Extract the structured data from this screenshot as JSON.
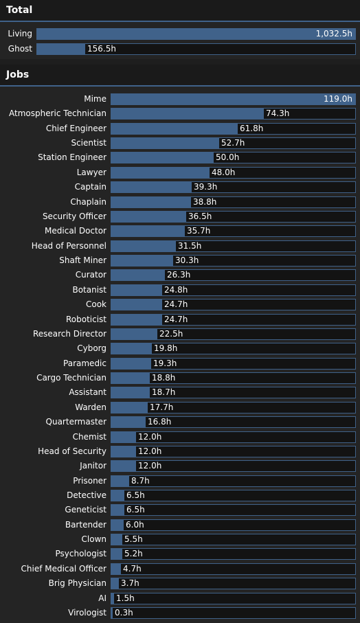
{
  "total": {
    "title": "Total",
    "rows": [
      {
        "label": "Living",
        "value": "1,032.5h",
        "hours": 1032.5
      },
      {
        "label": "Ghost",
        "value": "156.5h",
        "hours": 156.5
      }
    ]
  },
  "jobs": {
    "title": "Jobs",
    "rows": [
      {
        "label": "Mime",
        "value": "119.0h",
        "hours": 119.0
      },
      {
        "label": "Atmospheric Technician",
        "value": "74.3h",
        "hours": 74.3
      },
      {
        "label": "Chief Engineer",
        "value": "61.8h",
        "hours": 61.8
      },
      {
        "label": "Scientist",
        "value": "52.7h",
        "hours": 52.7
      },
      {
        "label": "Station Engineer",
        "value": "50.0h",
        "hours": 50.0
      },
      {
        "label": "Lawyer",
        "value": "48.0h",
        "hours": 48.0
      },
      {
        "label": "Captain",
        "value": "39.3h",
        "hours": 39.3
      },
      {
        "label": "Chaplain",
        "value": "38.8h",
        "hours": 38.8
      },
      {
        "label": "Security Officer",
        "value": "36.5h",
        "hours": 36.5
      },
      {
        "label": "Medical Doctor",
        "value": "35.7h",
        "hours": 35.7
      },
      {
        "label": "Head of Personnel",
        "value": "31.5h",
        "hours": 31.5
      },
      {
        "label": "Shaft Miner",
        "value": "30.3h",
        "hours": 30.3
      },
      {
        "label": "Curator",
        "value": "26.3h",
        "hours": 26.3
      },
      {
        "label": "Botanist",
        "value": "24.8h",
        "hours": 24.8
      },
      {
        "label": "Cook",
        "value": "24.7h",
        "hours": 24.7
      },
      {
        "label": "Roboticist",
        "value": "24.7h",
        "hours": 24.7
      },
      {
        "label": "Research Director",
        "value": "22.5h",
        "hours": 22.5
      },
      {
        "label": "Cyborg",
        "value": "19.8h",
        "hours": 19.8
      },
      {
        "label": "Paramedic",
        "value": "19.3h",
        "hours": 19.3
      },
      {
        "label": "Cargo Technician",
        "value": "18.8h",
        "hours": 18.8
      },
      {
        "label": "Assistant",
        "value": "18.7h",
        "hours": 18.7
      },
      {
        "label": "Warden",
        "value": "17.7h",
        "hours": 17.7
      },
      {
        "label": "Quartermaster",
        "value": "16.8h",
        "hours": 16.8
      },
      {
        "label": "Chemist",
        "value": "12.0h",
        "hours": 12.0
      },
      {
        "label": "Head of Security",
        "value": "12.0h",
        "hours": 12.0
      },
      {
        "label": "Janitor",
        "value": "12.0h",
        "hours": 12.0
      },
      {
        "label": "Prisoner",
        "value": "8.7h",
        "hours": 8.7
      },
      {
        "label": "Detective",
        "value": "6.5h",
        "hours": 6.5
      },
      {
        "label": "Geneticist",
        "value": "6.5h",
        "hours": 6.5
      },
      {
        "label": "Bartender",
        "value": "6.0h",
        "hours": 6.0
      },
      {
        "label": "Clown",
        "value": "5.5h",
        "hours": 5.5
      },
      {
        "label": "Psychologist",
        "value": "5.2h",
        "hours": 5.2
      },
      {
        "label": "Chief Medical Officer",
        "value": "4.7h",
        "hours": 4.7
      },
      {
        "label": "Brig Physician",
        "value": "3.7h",
        "hours": 3.7
      },
      {
        "label": "AI",
        "value": "1.5h",
        "hours": 1.5
      },
      {
        "label": "Virologist",
        "value": "0.3h",
        "hours": 0.3
      }
    ]
  },
  "colors": {
    "bar_fill": "#40628a",
    "bar_track": "#131313",
    "background": "#1e1e1e"
  }
}
